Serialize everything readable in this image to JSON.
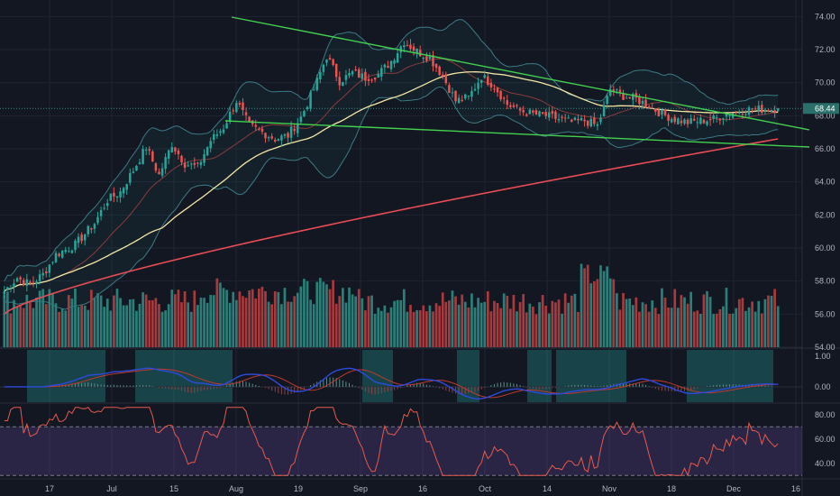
{
  "colors": {
    "background": "#131722",
    "grid": "#1f2433",
    "up": "#26a69a",
    "down": "#ef5350",
    "vol_up": "#2a7f79",
    "vol_down": "#a8393c",
    "bb": "#3c7a85",
    "bb_fill": "rgba(38,166,154,0.07)",
    "sma_mid": "#f5e6a3",
    "sma_long": "#e84c55",
    "trend": "#43d24e",
    "price_label": "#2a6f6a",
    "macd": "#2d4bdb",
    "macd_signal": "#c0392b",
    "rsi": "#e55b4d",
    "rsi_band": "rgba(126,87,194,0.22)"
  },
  "chart_data": [
    {
      "name": "price",
      "type": "candlestick",
      "last_price": "68.44",
      "y_ticks": [
        "74.00",
        "72.00",
        "70.00",
        "68.00",
        "66.00",
        "64.00",
        "62.00",
        "60.00",
        "58.00",
        "56.00",
        "54.00"
      ],
      "ylim": [
        54,
        75
      ],
      "ohlc_keyframes": [
        [
          0,
          57.4
        ],
        [
          4,
          58.2
        ],
        [
          8,
          57.8
        ],
        [
          12,
          58.4
        ],
        [
          16,
          59.6
        ],
        [
          22,
          60.2
        ],
        [
          28,
          61.5
        ],
        [
          32,
          62.9
        ],
        [
          36,
          63.4
        ],
        [
          40,
          64.7
        ],
        [
          44,
          66.1
        ],
        [
          48,
          64.4
        ],
        [
          52,
          66.3
        ],
        [
          56,
          65.1
        ],
        [
          60,
          64.9
        ],
        [
          64,
          66.5
        ],
        [
          68,
          67.3
        ],
        [
          72,
          68.9
        ],
        [
          76,
          67.4
        ],
        [
          80,
          67.0
        ],
        [
          84,
          66.6
        ],
        [
          88,
          66.8
        ],
        [
          92,
          67.9
        ],
        [
          96,
          69.6
        ],
        [
          100,
          71.6
        ],
        [
          104,
          70.1
        ],
        [
          108,
          70.6
        ],
        [
          112,
          70.3
        ],
        [
          116,
          70.5
        ],
        [
          120,
          71.3
        ],
        [
          124,
          72.5
        ],
        [
          128,
          71.9
        ],
        [
          132,
          71.5
        ],
        [
          136,
          70.4
        ],
        [
          140,
          68.9
        ],
        [
          144,
          69.1
        ],
        [
          148,
          70.4
        ],
        [
          152,
          69.8
        ],
        [
          156,
          68.7
        ],
        [
          160,
          68.3
        ],
        [
          164,
          68.1
        ],
        [
          168,
          68.0
        ],
        [
          172,
          67.8
        ],
        [
          176,
          67.6
        ],
        [
          180,
          67.7
        ],
        [
          184,
          67.4
        ],
        [
          188,
          69.6
        ],
        [
          192,
          69.2
        ],
        [
          196,
          69.0
        ],
        [
          200,
          68.6
        ],
        [
          204,
          68.1
        ],
        [
          208,
          67.8
        ],
        [
          212,
          67.6
        ],
        [
          216,
          67.7
        ],
        [
          220,
          67.8
        ],
        [
          224,
          68.1
        ],
        [
          228,
          68.3
        ],
        [
          232,
          68.4
        ],
        [
          236,
          68.4
        ],
        [
          240,
          68.44
        ]
      ],
      "candles_count": 241,
      "sma_long_range": [
        56.0,
        66.6
      ],
      "bollinger_width": 2.4,
      "trendlines": [
        {
          "from": [
            0,
            74.6
          ],
          "to": [
            241,
            67.3
          ]
        },
        {
          "from": [
            0,
            68.3
          ],
          "to": [
            241,
            66.5
          ]
        }
      ],
      "x_ticks": [
        "17",
        "Jul",
        "15",
        "Aug",
        "19",
        "Sep",
        "16",
        "Oct",
        "14",
        "Nov",
        "18",
        "Dec",
        "16"
      ]
    },
    {
      "name": "volume",
      "type": "bar",
      "note_values_relative": true,
      "values_base": 56.0,
      "max_value": 59.3
    },
    {
      "name": "macd",
      "type": "line",
      "y_ticks": [
        "1.00",
        "0.00"
      ],
      "ylim": [
        -0.5,
        1.2
      ]
    },
    {
      "name": "rsi",
      "type": "line",
      "y_ticks": [
        "80.00",
        "60.00",
        "40.00"
      ],
      "ylim": [
        28,
        88
      ],
      "band": [
        30,
        70
      ]
    }
  ]
}
